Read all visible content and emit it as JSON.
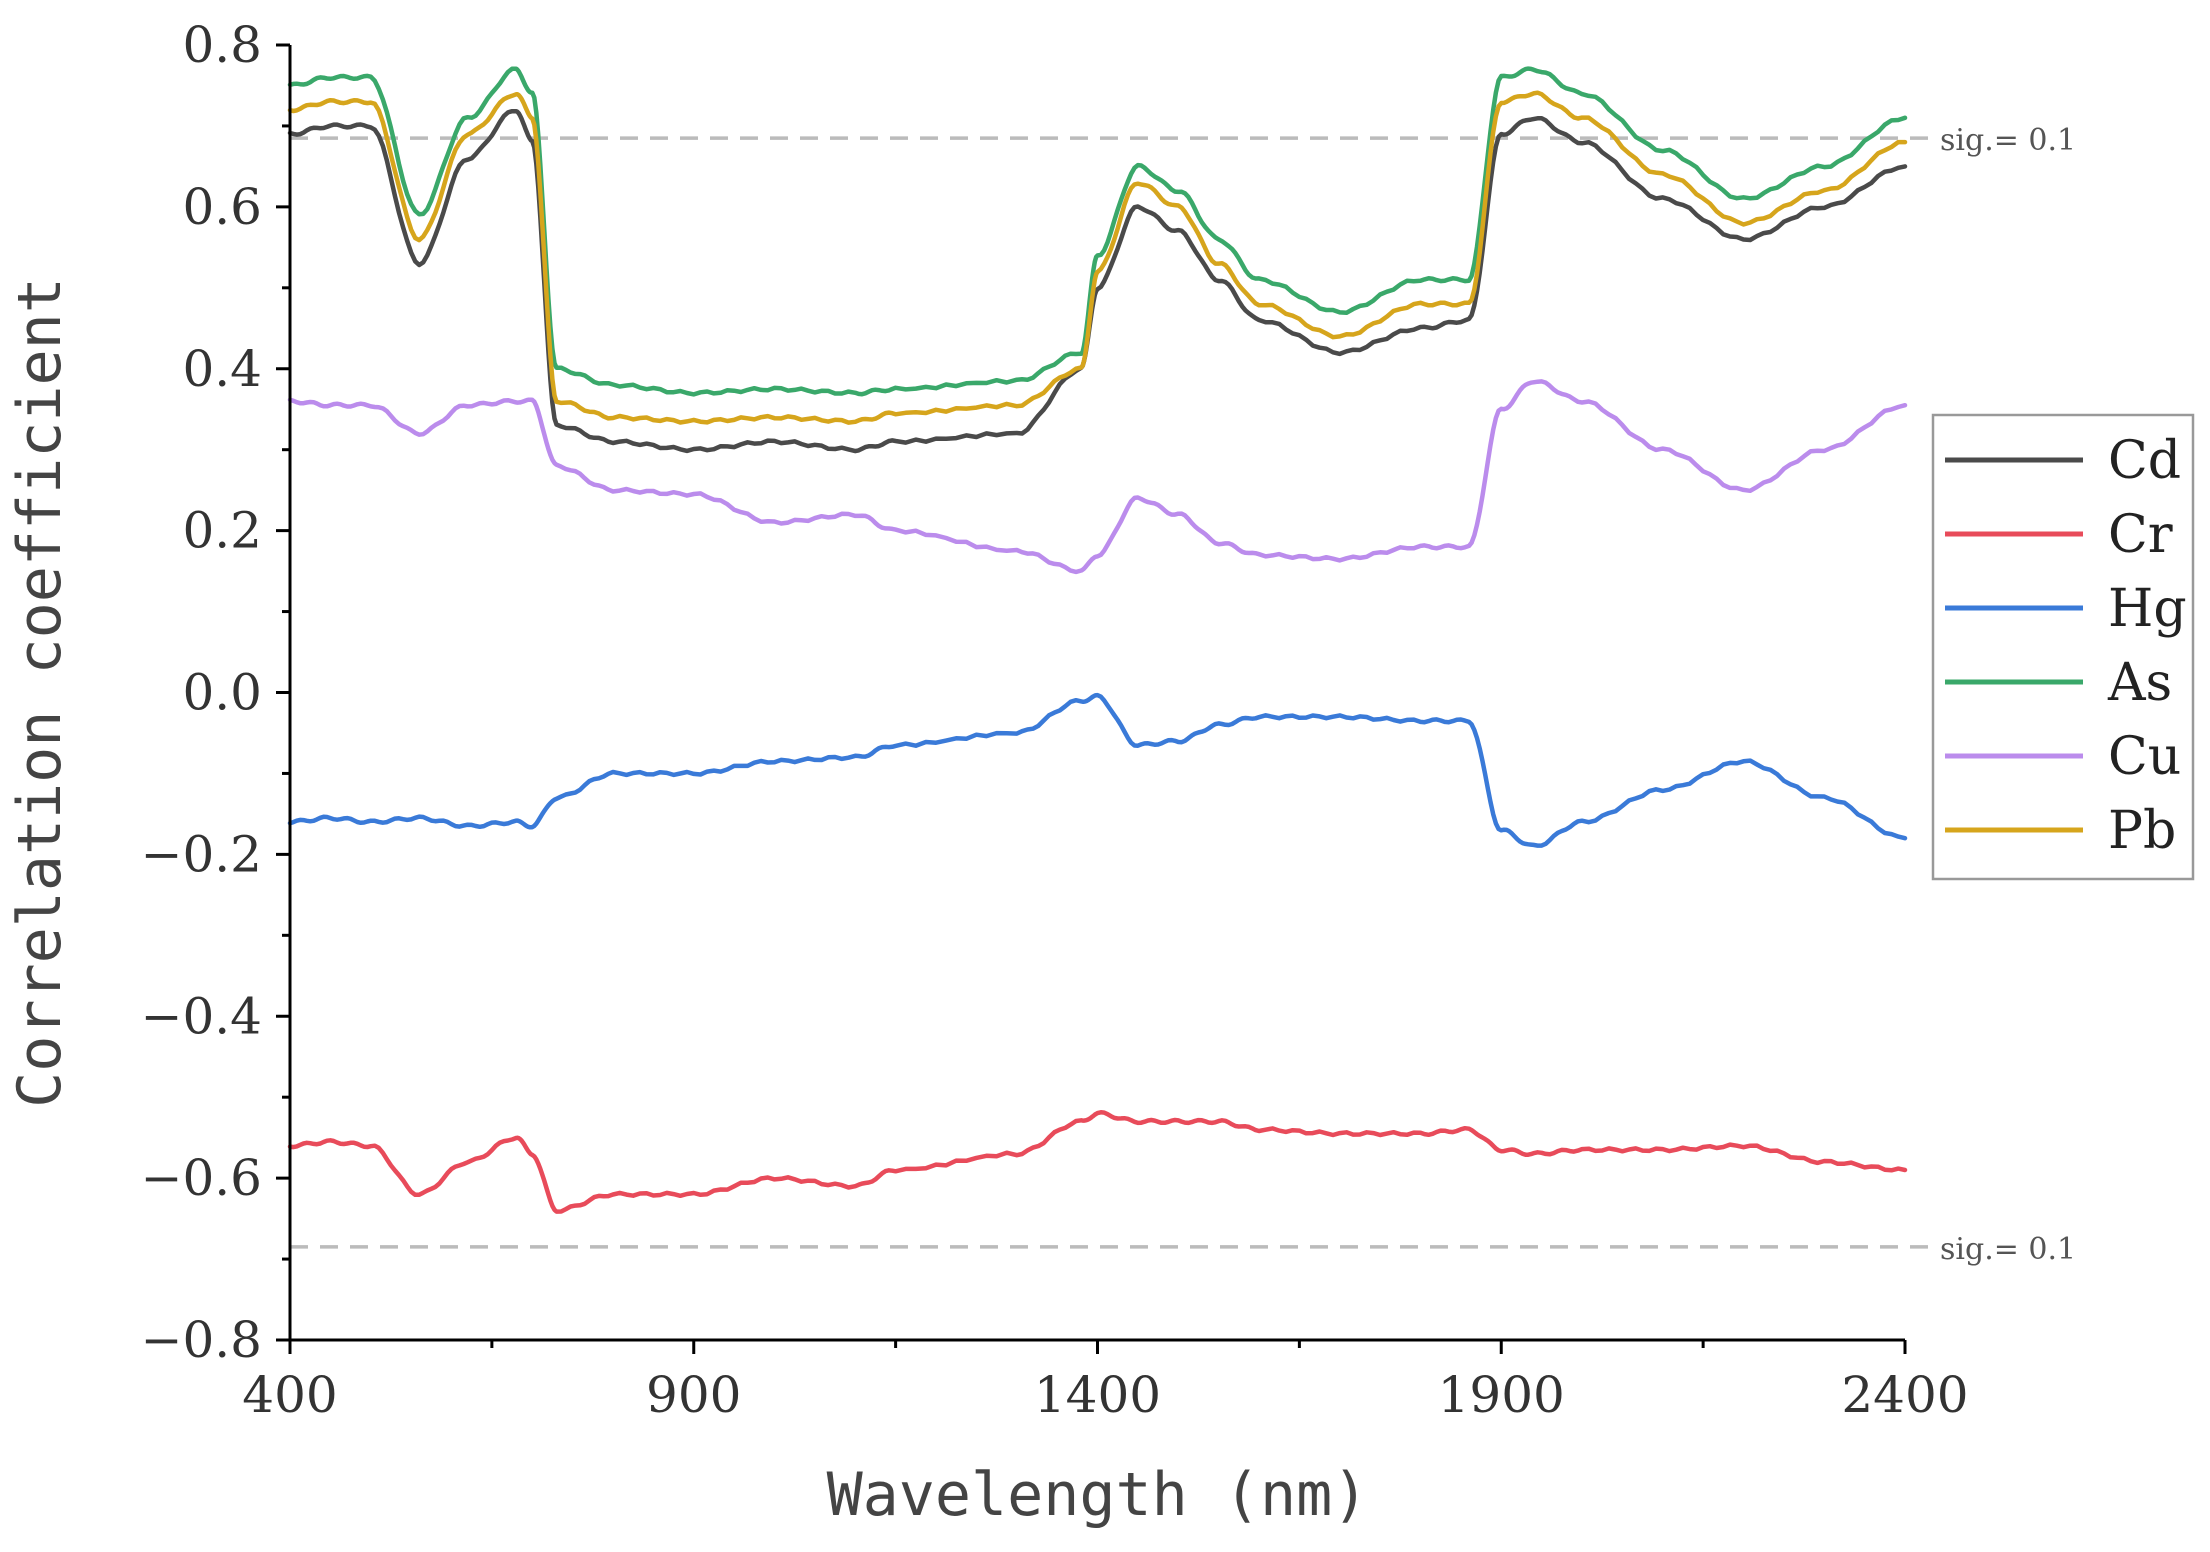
{
  "chart_data": {
    "type": "line",
    "title": "",
    "xlabel": "Wavelength (nm)",
    "ylabel": "Correlation coefficient",
    "xlim": [
      400,
      2400
    ],
    "ylim": [
      -0.8,
      0.8
    ],
    "xticks": [
      400,
      900,
      1400,
      1900,
      2400
    ],
    "xtick_labels": [
      "400",
      "900",
      "1400",
      "1900",
      "2400"
    ],
    "yticks": [
      0.8,
      0.6,
      0.4,
      0.2,
      0.0,
      -0.2,
      -0.4,
      -0.6,
      -0.8
    ],
    "ytick_labels": [
      "0.8",
      "0.6",
      "0.4",
      "0.2",
      "0.0",
      "−0.2",
      "−0.4",
      "−0.6",
      "−0.8"
    ],
    "thresholds": [
      {
        "value": 0.685,
        "label": "sig.= 0.1"
      },
      {
        "value": -0.685,
        "label": "sig.= 0.1"
      }
    ],
    "legend_position": "right",
    "x": [
      400,
      450,
      500,
      560,
      620,
      680,
      700,
      730,
      800,
      900,
      1000,
      1100,
      1150,
      1300,
      1380,
      1400,
      1450,
      1500,
      1550,
      1600,
      1700,
      1800,
      1860,
      1900,
      1940,
      2000,
      2100,
      2200,
      2300,
      2400
    ],
    "series": [
      {
        "name": "Cd",
        "color": "#4a4a4a",
        "values": [
          0.69,
          0.7,
          0.7,
          0.53,
          0.66,
          0.72,
          0.68,
          0.33,
          0.31,
          0.3,
          0.31,
          0.3,
          0.31,
          0.32,
          0.4,
          0.5,
          0.6,
          0.57,
          0.51,
          0.46,
          0.42,
          0.45,
          0.46,
          0.69,
          0.71,
          0.68,
          0.61,
          0.56,
          0.6,
          0.65
        ]
      },
      {
        "name": "Cr",
        "color": "#e84b5a",
        "values": [
          -0.56,
          -0.555,
          -0.56,
          -0.62,
          -0.58,
          -0.55,
          -0.57,
          -0.64,
          -0.62,
          -0.62,
          -0.6,
          -0.61,
          -0.59,
          -0.57,
          -0.53,
          -0.52,
          -0.53,
          -0.53,
          -0.53,
          -0.54,
          -0.545,
          -0.545,
          -0.54,
          -0.565,
          -0.57,
          -0.565,
          -0.565,
          -0.56,
          -0.58,
          -0.59
        ]
      },
      {
        "name": "Hg",
        "color": "#3a7ad8",
        "values": [
          -0.16,
          -0.155,
          -0.16,
          -0.155,
          -0.165,
          -0.16,
          -0.165,
          -0.13,
          -0.1,
          -0.1,
          -0.085,
          -0.08,
          -0.065,
          -0.05,
          -0.01,
          -0.005,
          -0.065,
          -0.06,
          -0.04,
          -0.03,
          -0.03,
          -0.035,
          -0.035,
          -0.17,
          -0.19,
          -0.16,
          -0.12,
          -0.085,
          -0.13,
          -0.18
        ]
      },
      {
        "name": "As",
        "color": "#3aa86a",
        "values": [
          0.75,
          0.76,
          0.76,
          0.59,
          0.71,
          0.77,
          0.74,
          0.4,
          0.38,
          0.37,
          0.375,
          0.37,
          0.375,
          0.385,
          0.42,
          0.54,
          0.65,
          0.62,
          0.56,
          0.51,
          0.47,
          0.51,
          0.51,
          0.76,
          0.77,
          0.74,
          0.67,
          0.61,
          0.65,
          0.71
        ]
      },
      {
        "name": "Cu",
        "color": "#bb8cec",
        "values": [
          0.36,
          0.355,
          0.355,
          0.32,
          0.355,
          0.36,
          0.36,
          0.28,
          0.25,
          0.245,
          0.21,
          0.22,
          0.2,
          0.175,
          0.15,
          0.17,
          0.24,
          0.22,
          0.185,
          0.17,
          0.165,
          0.18,
          0.18,
          0.35,
          0.385,
          0.36,
          0.3,
          0.25,
          0.3,
          0.355
        ]
      },
      {
        "name": "Pb",
        "color": "#d6a51c",
        "values": [
          0.72,
          0.73,
          0.73,
          0.56,
          0.69,
          0.74,
          0.71,
          0.36,
          0.34,
          0.335,
          0.34,
          0.335,
          0.345,
          0.355,
          0.4,
          0.52,
          0.63,
          0.6,
          0.53,
          0.48,
          0.44,
          0.48,
          0.48,
          0.73,
          0.74,
          0.71,
          0.64,
          0.58,
          0.62,
          0.68
        ]
      }
    ]
  }
}
